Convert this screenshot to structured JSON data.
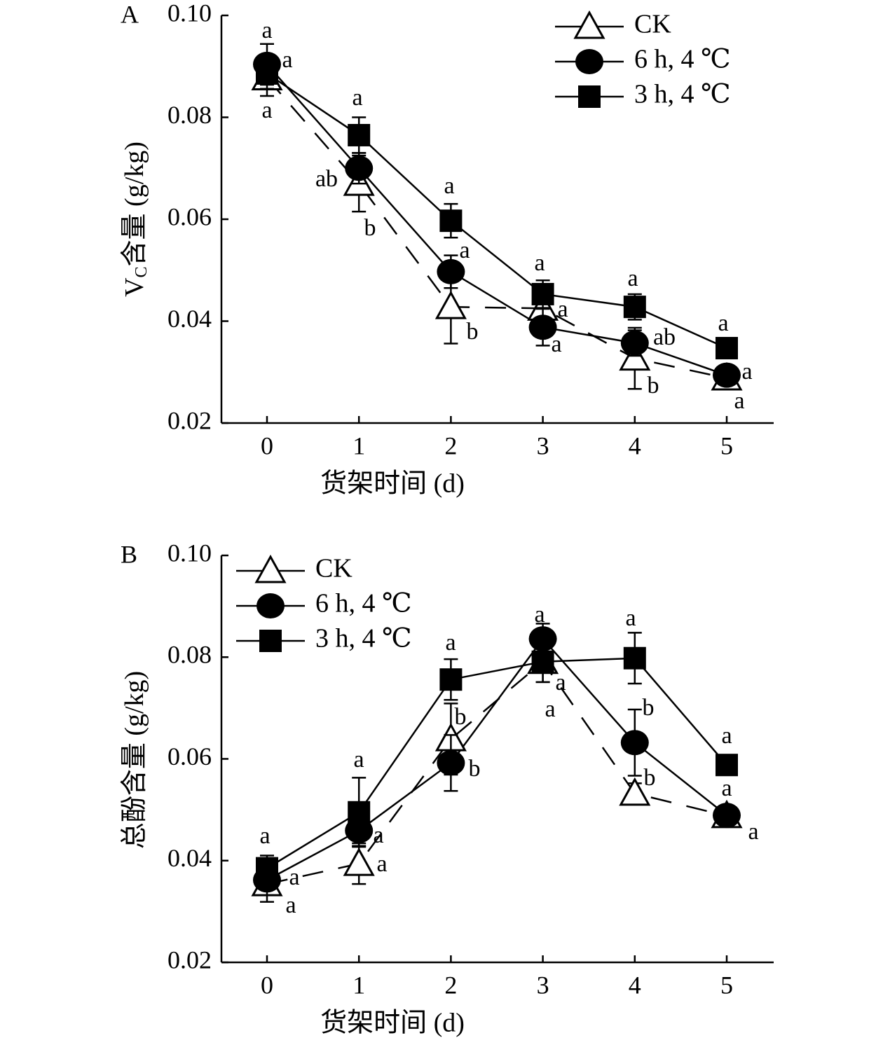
{
  "chart_data": [
    {
      "panel_label": "A",
      "type": "line",
      "xlabel": "货架时间 (d)",
      "ylabel_main": "V",
      "ylabel_sub": "C",
      "ylabel_rest": "含量 (g/kg)",
      "x": [
        0,
        1,
        2,
        3,
        4,
        5
      ],
      "xticks": [
        "0",
        "1",
        "2",
        "3",
        "4",
        "5"
      ],
      "ylim": [
        0.02,
        0.1
      ],
      "yticks": [
        "0.02",
        "0.04",
        "0.06",
        "0.08",
        "0.10"
      ],
      "grid": false,
      "legend_position": "top-right",
      "series": [
        {
          "name": "CK",
          "marker": "open-triangle",
          "line": "dashed",
          "values": [
            0.0877,
            0.067,
            0.0428,
            0.0425,
            0.0327,
            0.0288
          ],
          "errors": [
            0.0035,
            0.0055,
            0.0072,
            0.0025,
            0.006,
            0.0015
          ],
          "letters": [
            "a",
            "b",
            "b",
            "a",
            "b",
            "a"
          ]
        },
        {
          "name": "6 h, 4 ℃",
          "marker": "filled-circle",
          "line": "solid",
          "values": [
            0.0904,
            0.07,
            0.0497,
            0.0388,
            0.0357,
            0.0294
          ],
          "errors": [
            0.004,
            0.003,
            0.0032,
            0.0036,
            0.0025,
            0.0012
          ],
          "letters": [
            "a",
            "ab",
            "a",
            "a",
            "ab",
            "a"
          ]
        },
        {
          "name": "3 h, 4 ℃",
          "marker": "filled-square",
          "line": "solid",
          "values": [
            0.0886,
            0.0765,
            0.0597,
            0.0453,
            0.0428,
            0.0347
          ],
          "errors": [
            0.003,
            0.0035,
            0.0033,
            0.0027,
            0.0025,
            0.001
          ],
          "letters": [
            "a",
            "a",
            "a",
            "a",
            "a",
            "a"
          ]
        }
      ]
    },
    {
      "panel_label": "B",
      "type": "line",
      "xlabel": "货架时间 (d)",
      "ylabel_main": "总酚含量 (g/kg)",
      "x": [
        0,
        1,
        2,
        3,
        4,
        5
      ],
      "xticks": [
        "0",
        "1",
        "2",
        "3",
        "4",
        "5"
      ],
      "ylim": [
        0.02,
        0.1
      ],
      "yticks": [
        "0.02",
        "0.04",
        "0.06",
        "0.08",
        "0.10"
      ],
      "grid": false,
      "legend_position": "top-left",
      "series": [
        {
          "name": "CK",
          "marker": "open-triangle",
          "line": "dashed",
          "values": [
            0.0354,
            0.0394,
            0.0639,
            0.0791,
            0.0532,
            0.0488
          ],
          "errors": [
            0.0035,
            0.004,
            0.007,
            0.004,
            0.002,
            0.001
          ],
          "letters": [
            "a",
            "a",
            "b",
            "a",
            "b",
            "a"
          ]
        },
        {
          "name": "6 h, 4 ℃",
          "marker": "filled-circle",
          "line": "solid",
          "values": [
            0.0362,
            0.0459,
            0.0592,
            0.0836,
            0.0632,
            0.0489
          ],
          "errors": [
            0.003,
            0.003,
            0.0055,
            0.003,
            0.0065,
            0.001
          ],
          "letters": [
            "a",
            "a",
            "b",
            "a",
            "b",
            "a"
          ]
        },
        {
          "name": "3 h, 4 ℃",
          "marker": "filled-square",
          "line": "solid",
          "values": [
            0.0385,
            0.0495,
            0.0756,
            0.0791,
            0.0798,
            0.0588
          ],
          "errors": [
            0.0025,
            0.0068,
            0.004,
            0.004,
            0.005,
            0.001
          ],
          "letters": [
            "a",
            "a",
            "a",
            "a",
            "a",
            "a"
          ]
        }
      ]
    }
  ]
}
